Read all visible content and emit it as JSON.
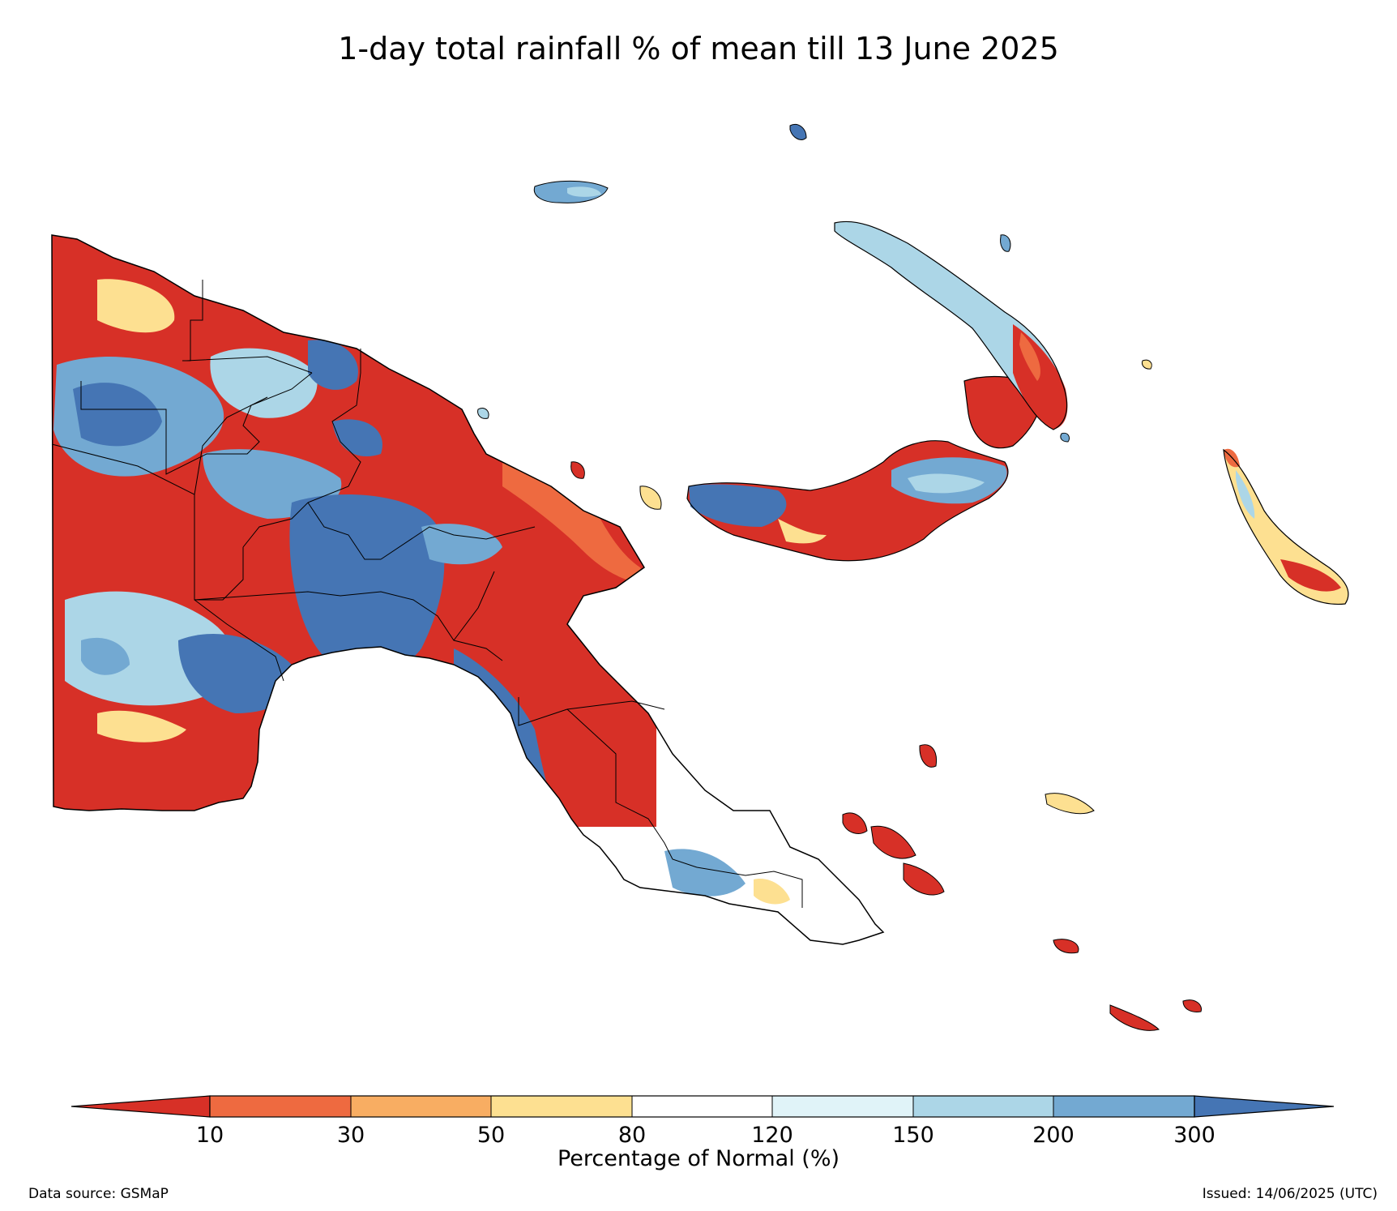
{
  "title": "1-day total rainfall % of mean till 13 June 2025",
  "colorbar": {
    "label": "Percentage of Normal (%)",
    "ticks": [
      "10",
      "30",
      "50",
      "80",
      "120",
      "150",
      "200",
      "300"
    ],
    "colors": {
      "below_10": "#d73027",
      "10_30": "#ee6a40",
      "30_50": "#f8ad62",
      "50_80": "#fde091",
      "80_120": "#ffffff",
      "120_150": "#e0f3f8",
      "150_200": "#acd6e7",
      "200_300": "#73a9d2",
      "above_300": "#4575b4"
    }
  },
  "footer": {
    "source": "Data source: GSMaP",
    "issued": "Issued: 14/06/2025 (UTC)"
  }
}
